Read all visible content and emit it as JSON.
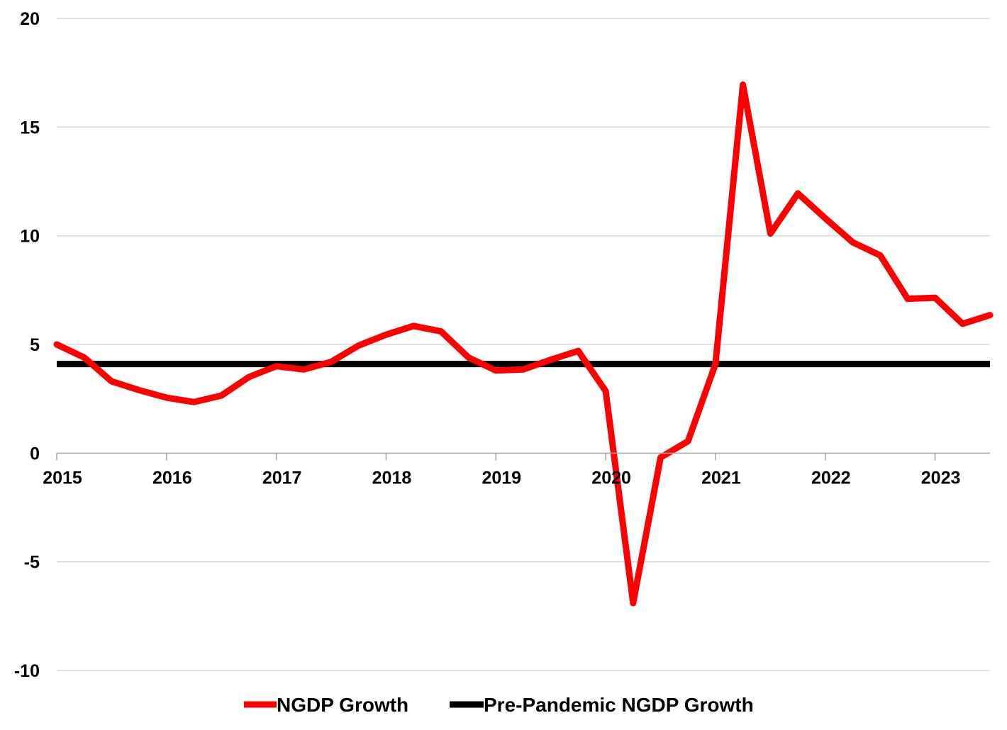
{
  "chart_data": {
    "type": "line",
    "title": "",
    "xlabel": "",
    "ylabel": "",
    "xlim": [
      2015.0,
      2023.5
    ],
    "ylim": [
      -10,
      20
    ],
    "y_ticks": [
      -10,
      -5,
      0,
      5,
      10,
      15,
      20
    ],
    "x_ticks": [
      2015,
      2016,
      2017,
      2018,
      2019,
      2020,
      2021,
      2022,
      2023
    ],
    "x_tick_labels": [
      "2015",
      "2016",
      "2017",
      "2018",
      "2019",
      "2020",
      "2021",
      "2022",
      "2023"
    ],
    "y_tick_labels": [
      "-10",
      "-5",
      "0",
      "5",
      "10",
      "15",
      "20"
    ],
    "grid": "horizontal",
    "legend_position": "bottom",
    "series": [
      {
        "name": "NGDP Growth",
        "color": "#ff0000",
        "x": [
          2015.0,
          2015.25,
          2015.5,
          2015.75,
          2016.0,
          2016.25,
          2016.5,
          2016.75,
          2017.0,
          2017.25,
          2017.5,
          2017.75,
          2018.0,
          2018.25,
          2018.5,
          2018.75,
          2019.0,
          2019.25,
          2019.5,
          2019.75,
          2020.0,
          2020.25,
          2020.5,
          2020.75,
          2021.0,
          2021.25,
          2021.5,
          2021.75,
          2022.0,
          2022.25,
          2022.5,
          2022.75,
          2023.0,
          2023.25,
          2023.5
        ],
        "y": [
          5.0,
          4.4,
          3.3,
          2.9,
          2.55,
          2.35,
          2.65,
          3.5,
          4.0,
          3.85,
          4.2,
          4.95,
          5.45,
          5.85,
          5.6,
          4.4,
          3.8,
          3.85,
          4.3,
          4.7,
          2.85,
          -6.9,
          -0.2,
          0.55,
          4.1,
          16.95,
          10.1,
          11.95,
          10.8,
          9.7,
          9.1,
          7.1,
          7.15,
          5.95,
          6.35
        ]
      },
      {
        "name": "Pre-Pandemic NGDP Growth",
        "color": "#000000",
        "x": [
          2015.0,
          2023.5
        ],
        "y": [
          4.1,
          4.1
        ]
      }
    ]
  }
}
